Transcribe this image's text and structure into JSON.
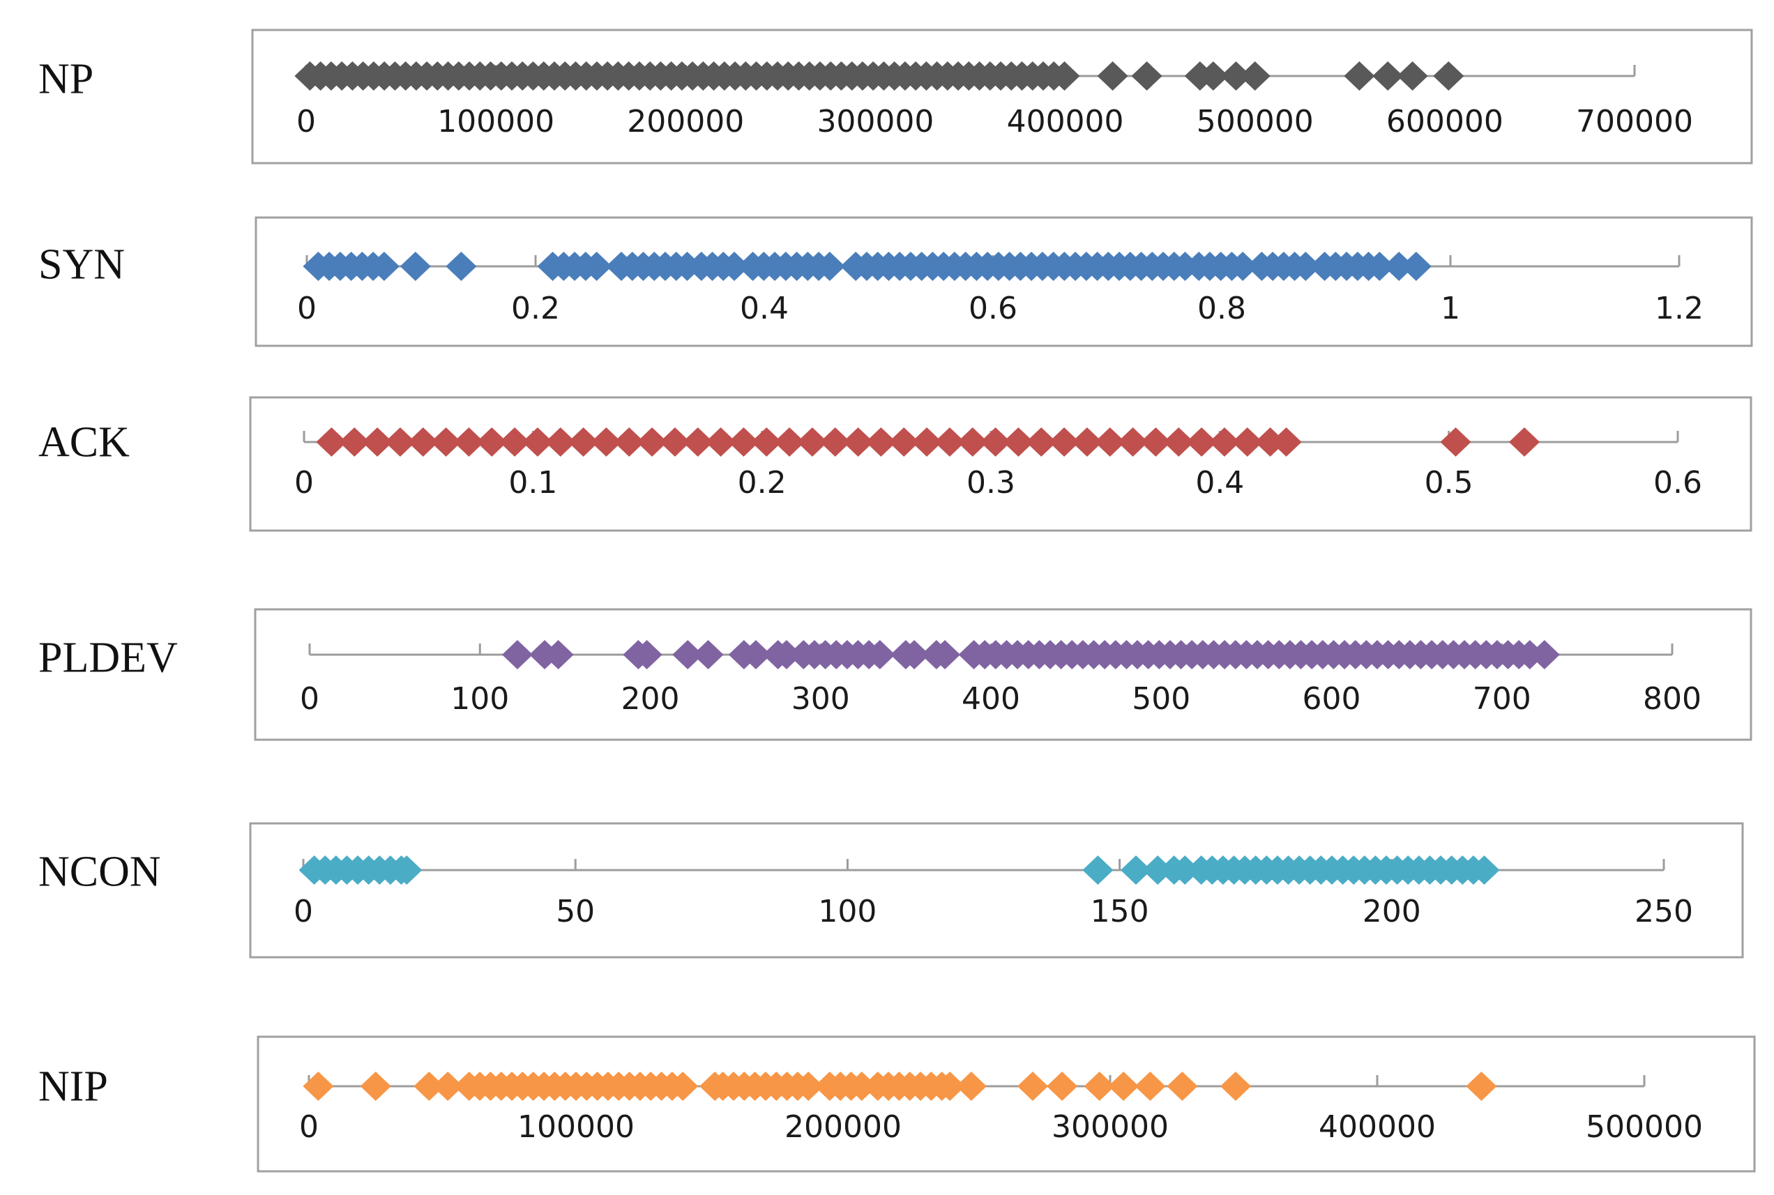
{
  "chart_data": [
    {
      "type": "scatter",
      "name": "NP",
      "label": "NP",
      "color": "#595959",
      "xlim": [
        0,
        700000
      ],
      "ticks": [
        0,
        100000,
        200000,
        300000,
        400000,
        500000,
        600000,
        700000
      ],
      "tick_labels": [
        "0",
        "100000",
        "200000",
        "300000",
        "400000",
        "500000",
        "600000",
        "700000"
      ],
      "dense_ranges": [
        [
          2000,
          400000
        ]
      ],
      "values": [
        425000,
        443000,
        471000,
        478000,
        490000,
        500000,
        555000,
        570000,
        583000,
        602000
      ]
    },
    {
      "type": "scatter",
      "name": "SYN",
      "label": "SYN",
      "color": "#4a7ebb",
      "xlim": [
        0,
        1.2
      ],
      "ticks": [
        0,
        0.2,
        0.4,
        0.6,
        0.8,
        1,
        1.2
      ],
      "tick_labels": [
        "0",
        "0.2",
        "0.4",
        "0.6",
        "0.8",
        "1",
        "1.2"
      ],
      "dense_ranges": [
        [
          0.01,
          0.075
        ],
        [
          0.215,
          0.255
        ],
        [
          0.275,
          0.335
        ],
        [
          0.345,
          0.38
        ],
        [
          0.39,
          0.465
        ],
        [
          0.48,
          0.77
        ],
        [
          0.78,
          0.82
        ],
        [
          0.835,
          0.875
        ],
        [
          0.89,
          0.94
        ]
      ],
      "values": [
        0.095,
        0.135,
        0.955,
        0.97
      ]
    },
    {
      "type": "scatter",
      "name": "ACK",
      "label": "ACK",
      "color": "#c0504d",
      "xlim": [
        0,
        0.6
      ],
      "ticks": [
        0,
        0.1,
        0.2,
        0.3,
        0.4,
        0.5,
        0.6
      ],
      "tick_labels": [
        "0",
        "0.1",
        "0.2",
        "0.3",
        "0.4",
        "0.5",
        "0.6"
      ],
      "dense_ranges": [],
      "values": [
        0.012,
        0.022,
        0.032,
        0.042,
        0.052,
        0.062,
        0.072,
        0.082,
        0.092,
        0.102,
        0.112,
        0.122,
        0.132,
        0.142,
        0.152,
        0.162,
        0.172,
        0.182,
        0.192,
        0.202,
        0.212,
        0.222,
        0.232,
        0.242,
        0.252,
        0.262,
        0.272,
        0.282,
        0.292,
        0.302,
        0.312,
        0.322,
        0.332,
        0.342,
        0.352,
        0.362,
        0.372,
        0.382,
        0.392,
        0.402,
        0.412,
        0.422,
        0.429,
        0.503,
        0.533
      ]
    },
    {
      "type": "scatter",
      "name": "PLDEV",
      "label": "PLDEV",
      "color": "#8064a2",
      "xlim": [
        0,
        800
      ],
      "ticks": [
        0,
        100,
        200,
        300,
        400,
        500,
        600,
        700,
        800
      ],
      "tick_labels": [
        "0",
        "100",
        "200",
        "300",
        "400",
        "500",
        "600",
        "700",
        "800"
      ],
      "dense_ranges": [
        [
          290,
          340
        ],
        [
          390,
          720
        ]
      ],
      "values": [
        122,
        138,
        146,
        193,
        198,
        222,
        234,
        255,
        262,
        275,
        280,
        350,
        355,
        368,
        373,
        725
      ]
    },
    {
      "type": "scatter",
      "name": "NCON",
      "label": "NCON",
      "color": "#4bacc6",
      "xlim": [
        0,
        250
      ],
      "ticks": [
        0,
        50,
        100,
        150,
        200,
        250
      ],
      "tick_labels": [
        "0",
        "50",
        "100",
        "150",
        "200",
        "250"
      ],
      "dense_ranges": [
        [
          2,
          18
        ],
        [
          165,
          215
        ]
      ],
      "values": [
        19,
        146,
        153,
        157,
        160,
        162,
        217
      ]
    },
    {
      "type": "scatter",
      "name": "NIP",
      "label": "NIP",
      "color": "#f79646",
      "xlim": [
        0,
        500000
      ],
      "ticks": [
        0,
        100000,
        200000,
        300000,
        400000,
        500000
      ],
      "tick_labels": [
        "0",
        "100000",
        "200000",
        "300000",
        "400000",
        "500000"
      ],
      "dense_ranges": [
        [
          60000,
          140000
        ],
        [
          155000,
          190000
        ],
        [
          195000,
          210000
        ],
        [
          213000,
          237000
        ]
      ],
      "values": [
        3500,
        25000,
        45000,
        52000,
        152000,
        240000,
        248000,
        271000,
        282000,
        296000,
        305000,
        315000,
        327000,
        347000,
        439000
      ]
    }
  ]
}
